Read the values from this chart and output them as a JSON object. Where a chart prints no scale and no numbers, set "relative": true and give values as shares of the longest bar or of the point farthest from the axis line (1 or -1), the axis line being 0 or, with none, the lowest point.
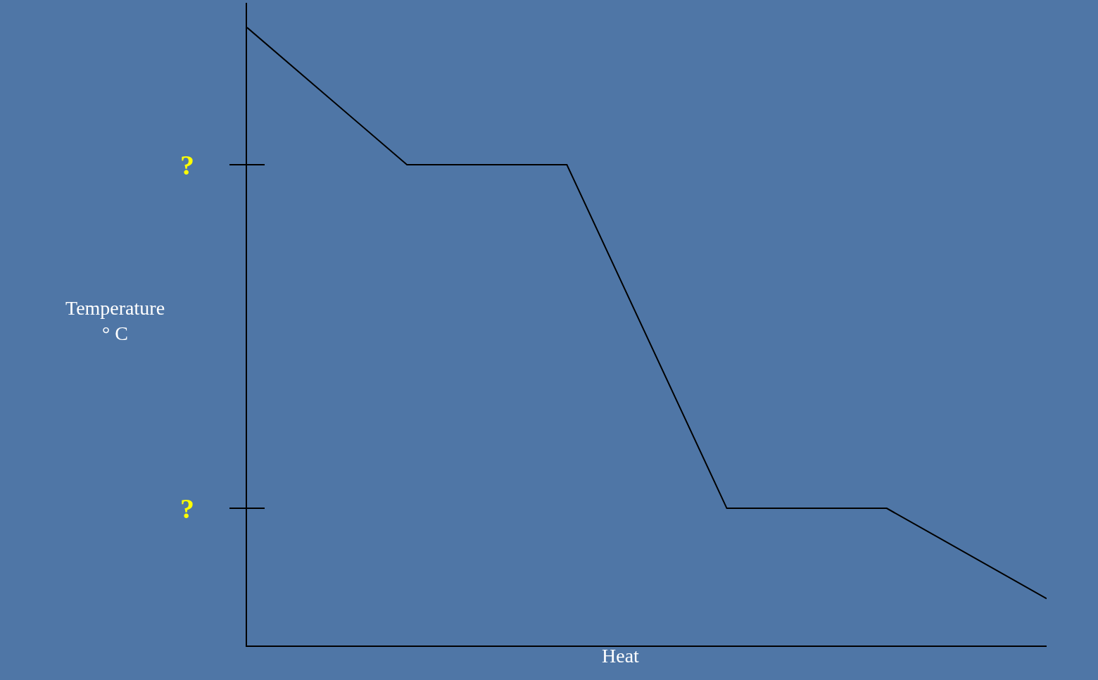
{
  "chart_data": {
    "type": "line",
    "xlabel": "Heat",
    "ylabel": "Temperature\n° C",
    "relative": true,
    "categories": [
      null,
      null,
      null,
      null,
      null,
      null
    ],
    "series": [
      {
        "color": "#000000",
        "values": [
          1,
          0.778,
          0.778,
          0.222,
          0.222,
          0.076
        ]
      }
    ],
    "annotations": [
      "?",
      "?"
    ],
    "marker": "none",
    "line_style": "solid"
  }
}
